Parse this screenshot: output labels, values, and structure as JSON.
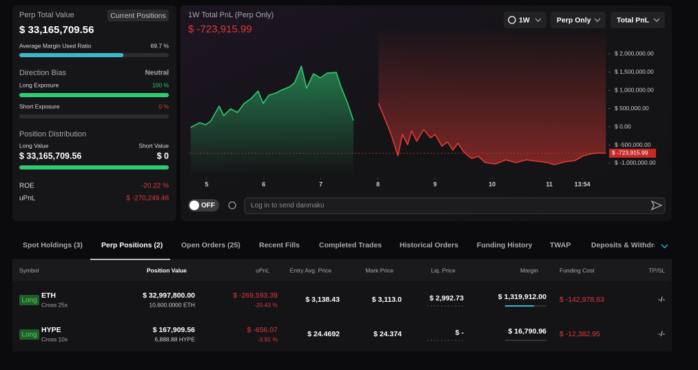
{
  "summary": {
    "title": "Perp Total Value",
    "button": "Current Positions",
    "total_value": "$ 33,165,709.56",
    "margin": {
      "name": "Average Margin Used Ratio",
      "ratio": {
        "value": 69.7,
        "label": "69.7 %"
      }
    },
    "direction_bias": {
      "name": "Direction Bias",
      "status": "Neutral",
      "long": {
        "name": "Long Exposure",
        "ratio": {
          "value": 100,
          "label": "100 %"
        }
      },
      "short": {
        "name": "Short Exposure",
        "ratio": {
          "value": 0,
          "label": "0 %"
        }
      }
    },
    "distribution": {
      "name": "Position Distribution",
      "long_name": "Long Value",
      "short_name": "Short Value",
      "long": {
        "value": 33165709.56,
        "label": "$ 33,165,709.56"
      },
      "short": {
        "value": 0,
        "label": "$ 0"
      }
    },
    "roe": {
      "name": "ROE",
      "value": "-20.22 %"
    },
    "upnl": {
      "name": "uPnL",
      "value": "$ -270,249.46"
    }
  },
  "pnl_chart": {
    "type": "line",
    "title": "1W Total PnL (Perp Only)",
    "current_value": {
      "value": -723915.99,
      "label": "$ -723,915.99"
    },
    "controls": [
      "1W",
      "Perp Only",
      "Total PnL"
    ],
    "x": [
      4.72,
      4.88,
      4.98,
      5.07,
      5.22,
      5.3,
      5.42,
      5.54,
      5.66,
      5.78,
      5.9,
      5.99,
      6.09,
      6.21,
      6.33,
      6.45,
      6.54,
      6.66,
      6.75,
      6.87,
      6.99,
      7.11,
      7.27,
      7.35,
      7.47,
      7.57,
      8.01,
      8.11,
      8.23,
      8.35,
      8.43,
      8.52,
      8.59,
      8.68,
      8.8,
      8.92,
      9.0,
      9.12,
      9.22,
      9.31,
      9.4,
      9.52,
      9.64,
      9.76,
      9.88,
      10.06,
      10.24,
      10.42,
      10.6,
      10.78,
      10.97,
      11.09,
      11.27,
      11.45,
      11.6,
      11.75,
      11.87,
      11.99
    ],
    "series": [
      {
        "color": "#2ecc71",
        "values": [
          -19000,
          113000,
          57000,
          151000,
          566000,
          302000,
          491000,
          396000,
          642000,
          774000,
          981000,
          642000,
          868000,
          925000,
          1019000,
          1094000,
          1208000,
          1660000,
          1057000,
          1453000,
          1340000,
          1472000,
          1491000,
          1113000,
          642000,
          170000,
          null,
          null,
          null,
          null,
          null,
          null,
          null,
          null,
          null,
          null,
          null,
          null,
          null,
          null,
          null,
          null,
          null,
          null,
          null,
          null,
          null,
          null,
          null,
          null,
          null,
          null,
          null,
          null,
          null,
          null,
          null,
          null
        ]
      },
      {
        "color": "#e53935",
        "values": [
          null,
          null,
          null,
          null,
          null,
          null,
          null,
          null,
          null,
          null,
          null,
          null,
          null,
          null,
          null,
          null,
          null,
          null,
          null,
          null,
          null,
          null,
          null,
          null,
          null,
          null,
          642000,
          264000,
          -208000,
          -792000,
          -208000,
          -491000,
          -113000,
          -396000,
          -75000,
          -302000,
          -208000,
          -528000,
          -415000,
          -642000,
          -453000,
          -717000,
          -868000,
          -811000,
          -981000,
          -1019000,
          -906000,
          -981000,
          -906000,
          -943000,
          -981000,
          -1038000,
          -962000,
          -925000,
          -792000,
          -736000,
          -717000,
          -723916
        ]
      }
    ],
    "xlim": [
      4.7,
      12.0
    ],
    "xticks": [
      5,
      6,
      7,
      8,
      9,
      10,
      11,
      {
        "value": 11.58,
        "label": "13:54"
      }
    ],
    "ylim": [
      -1340000,
      2720000
    ],
    "yticks": [
      {
        "value": 2000000,
        "label": "$ 2,000,000.00"
      },
      {
        "value": 1500000,
        "label": "$ 1,500,000.00"
      },
      {
        "value": 1000000,
        "label": "$ 1,000,000.00"
      },
      {
        "value": 500000,
        "label": "$ 500,000.00"
      },
      {
        "value": 0,
        "label": "$ 0.00"
      },
      {
        "value": -500000,
        "label": "$ -500,000.00"
      },
      {
        "value": -1000000,
        "label": "$ -1,000,000.00"
      }
    ]
  },
  "danmaku": {
    "toggle": "OFF",
    "placeholder": "Log in to send danmaku"
  },
  "tabs": {
    "items": [
      "Spot Holdings (3)",
      "Perp Positions (2)",
      "Open Orders (25)",
      "Recent Fills",
      "Completed Trades",
      "Historical Orders",
      "Funding History",
      "TWAP",
      "Deposits & Withdrawals"
    ],
    "active": 1
  },
  "table": {
    "columns": [
      "Symbol",
      "Position Value",
      "uPnL",
      "Entry Avg. Price",
      "Mark Price",
      "Liq. Price",
      "Margin",
      "Funding Cost",
      "TP/SL"
    ],
    "rows": [
      {
        "side": "Long",
        "symbol": "ETH",
        "margin_mode": "Cross 25x",
        "position_value": "$ 32,997,800.00",
        "size": "10,600.0000 ETH",
        "upnl": "$ -269,593.39",
        "upnl_pct": "-20.43 %",
        "entry_price": "$ 3,138.43",
        "mark_price": "$ 3,113.0",
        "liq_price": "$ 2,992.73",
        "margin": "$ 1,319,912.00",
        "funding_cost": "$ -142,978.63",
        "tp_sl": "-/-"
      },
      {
        "side": "Long",
        "symbol": "HYPE",
        "margin_mode": "Cross 10x",
        "position_value": "$ 167,909.56",
        "size": "6,888.88 HYPE",
        "upnl": "$ -656.07",
        "upnl_pct": "-3.91 %",
        "entry_price": "$ 24.4692",
        "mark_price": "$ 24.374",
        "liq_price": "$ -",
        "margin": "$ 16,790.96",
        "funding_cost": "$ -12,382.95",
        "tp_sl": "-/-"
      }
    ]
  }
}
